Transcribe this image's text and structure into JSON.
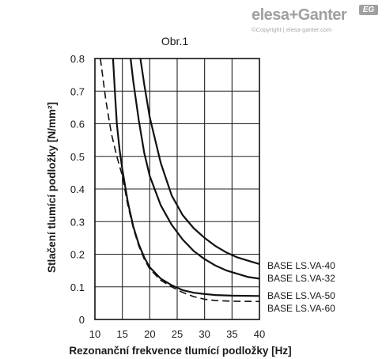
{
  "logo": {
    "brand": "elesa+Ganter",
    "badge": "EG",
    "copyright": "©Copyright | elesa-ganter.com"
  },
  "chart_data": {
    "type": "line",
    "title": "Obr.1",
    "xlabel": "Rezonanční frekvence tlumící podložky [Hz]",
    "ylabel": "Stlačení tlumící podložky [N/mm²]",
    "xlim": [
      10,
      40
    ],
    "ylim": [
      0,
      0.8
    ],
    "x_ticks": [
      "10",
      "15",
      "20",
      "25",
      "30",
      "35",
      "40"
    ],
    "y_ticks": [
      "0",
      "0.1",
      "0.2",
      "0.3",
      "0.4",
      "0.5",
      "0.6",
      "0.7",
      "0.8"
    ],
    "grid": true,
    "series": [
      {
        "name": "BASE LS.VA-40",
        "style": "solid",
        "x": [
          18.3,
          19,
          20,
          22,
          24,
          26,
          28,
          30,
          32,
          34,
          36,
          38,
          40
        ],
        "y": [
          0.8,
          0.72,
          0.62,
          0.48,
          0.38,
          0.32,
          0.28,
          0.25,
          0.225,
          0.205,
          0.19,
          0.18,
          0.17
        ]
      },
      {
        "name": "BASE LS.VA-32",
        "style": "solid",
        "x": [
          16.5,
          17,
          18,
          19,
          20,
          22,
          24,
          26,
          28,
          30,
          32,
          34,
          36,
          38,
          40
        ],
        "y": [
          0.8,
          0.73,
          0.61,
          0.51,
          0.44,
          0.35,
          0.29,
          0.245,
          0.21,
          0.185,
          0.165,
          0.15,
          0.14,
          0.13,
          0.125
        ]
      },
      {
        "name": "BASE LS.VA-50",
        "style": "solid",
        "x": [
          13.3,
          13.7,
          14,
          14.5,
          15,
          16,
          17,
          18,
          19,
          20,
          22,
          24,
          26,
          28,
          30,
          32,
          35,
          40
        ],
        "y": [
          0.8,
          0.68,
          0.6,
          0.52,
          0.46,
          0.36,
          0.285,
          0.23,
          0.19,
          0.16,
          0.125,
          0.105,
          0.09,
          0.082,
          0.078,
          0.075,
          0.073,
          0.072
        ]
      },
      {
        "name": "BASE LS.VA-60",
        "style": "dashed",
        "x": [
          11,
          12,
          13,
          14,
          15,
          16,
          17,
          18,
          19,
          20,
          22,
          24,
          26,
          28,
          30,
          32,
          35,
          40
        ],
        "y": [
          0.8,
          0.67,
          0.57,
          0.5,
          0.44,
          0.35,
          0.28,
          0.225,
          0.185,
          0.155,
          0.12,
          0.1,
          0.083,
          0.07,
          0.062,
          0.058,
          0.056,
          0.055
        ]
      }
    ]
  }
}
